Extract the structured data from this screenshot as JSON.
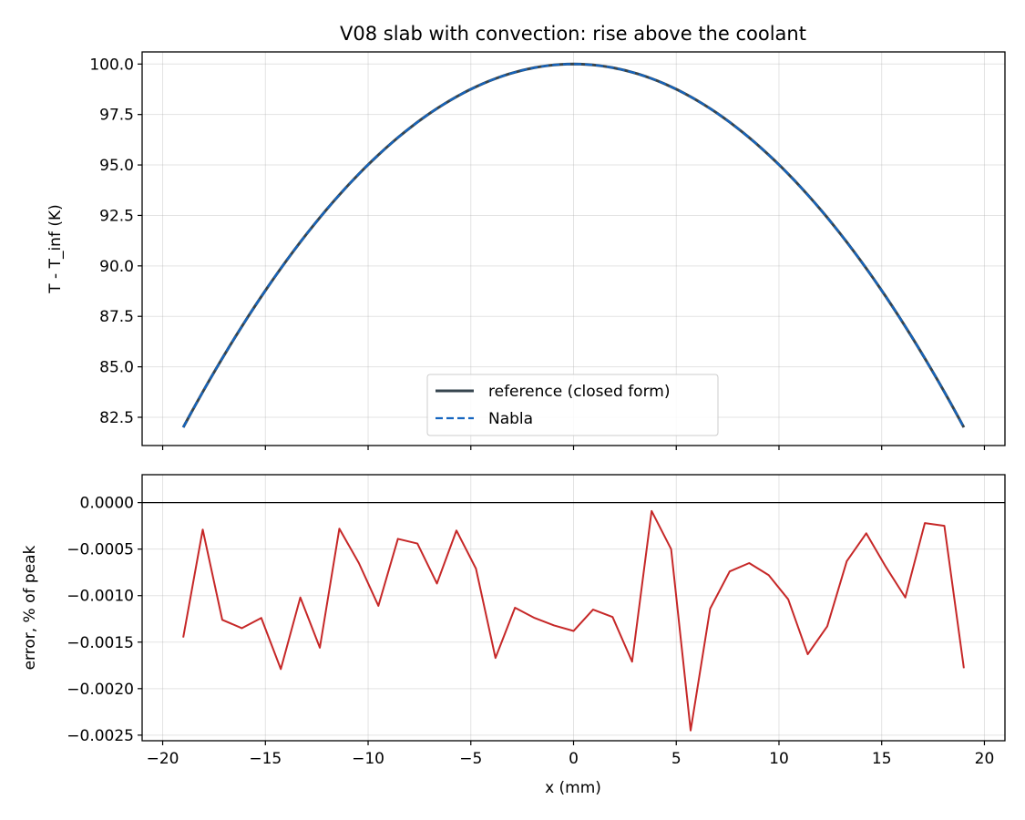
{
  "chart_data": [
    {
      "type": "line",
      "title": "V08 slab with convection: rise above the coolant",
      "xlabel": "",
      "ylabel": "T - T_inf (K)",
      "xlim": [
        -21,
        21
      ],
      "ylim": [
        81.1,
        100.6
      ],
      "x_ticks": [
        -20,
        -15,
        -10,
        -5,
        0,
        5,
        10,
        15,
        20
      ],
      "y_ticks": [
        82.5,
        85.0,
        87.5,
        90.0,
        92.5,
        95.0,
        97.5,
        100.0
      ],
      "y_tick_labels": [
        "82.5",
        "85.0",
        "87.5",
        "90.0",
        "92.5",
        "95.0",
        "97.5",
        "100.0"
      ],
      "grid": true,
      "legend_position": "lower-center",
      "series": [
        {
          "name": "reference (closed form)",
          "color": "#36454f",
          "style": "solid",
          "curve": {
            "kind": "parabola",
            "peak": 100.0,
            "x_edge": 19.0,
            "edge_value": 82.0
          }
        },
        {
          "name": "Nabla",
          "color": "#1565c0",
          "style": "dashed",
          "curve": {
            "kind": "parabola",
            "peak": 100.0,
            "x_edge": 19.0,
            "edge_value": 82.0
          }
        }
      ]
    },
    {
      "type": "line",
      "xlabel": "x (mm)",
      "ylabel": "error, % of peak",
      "xlim": [
        -21,
        21
      ],
      "ylim": [
        -0.00256,
        0.0003
      ],
      "x_ticks": [
        -20,
        -15,
        -10,
        -5,
        0,
        5,
        10,
        15,
        20
      ],
      "x_tick_labels": [
        "−20",
        "−15",
        "−10",
        "−5",
        "0",
        "5",
        "10",
        "15",
        "20"
      ],
      "y_ticks": [
        0.0,
        -0.0005,
        -0.001,
        -0.0015,
        -0.002,
        -0.0025
      ],
      "y_tick_labels": [
        "0.0000",
        "−0.0005",
        "−0.0010",
        "−0.0015",
        "−0.0020",
        "−0.0025"
      ],
      "reference_line": 0.0,
      "grid": true,
      "series": [
        {
          "color": "#c62828",
          "x": [
            -19.0,
            -18.05,
            -17.1,
            -16.15,
            -15.2,
            -14.25,
            -13.3,
            -12.35,
            -11.4,
            -10.45,
            -9.5,
            -8.55,
            -7.6,
            -6.65,
            -5.7,
            -4.75,
            -3.8,
            -2.85,
            -1.9,
            -0.95,
            0.0,
            0.95,
            1.9,
            2.85,
            3.8,
            4.75,
            5.7,
            6.65,
            7.6,
            8.55,
            9.5,
            10.45,
            11.4,
            12.35,
            13.3,
            14.25,
            15.2,
            16.15,
            17.1,
            18.05,
            19.0
          ],
          "values": [
            -0.00145,
            -0.00029,
            -0.00126,
            -0.00135,
            -0.00124,
            -0.00179,
            -0.00102,
            -0.00156,
            -0.00028,
            -0.00065,
            -0.00111,
            -0.00039,
            -0.00044,
            -0.00087,
            -0.0003,
            -0.00071,
            -0.00167,
            -0.00113,
            -0.00124,
            -0.00132,
            -0.00138,
            -0.00115,
            -0.00123,
            -0.00171,
            -9e-05,
            -0.0005,
            -0.00245,
            -0.00114,
            -0.00074,
            -0.00065,
            -0.00078,
            -0.00104,
            -0.00163,
            -0.00133,
            -0.00063,
            -0.00033,
            -0.00069,
            -0.00102,
            -0.00022,
            -0.00025,
            -0.00178
          ]
        }
      ]
    }
  ]
}
